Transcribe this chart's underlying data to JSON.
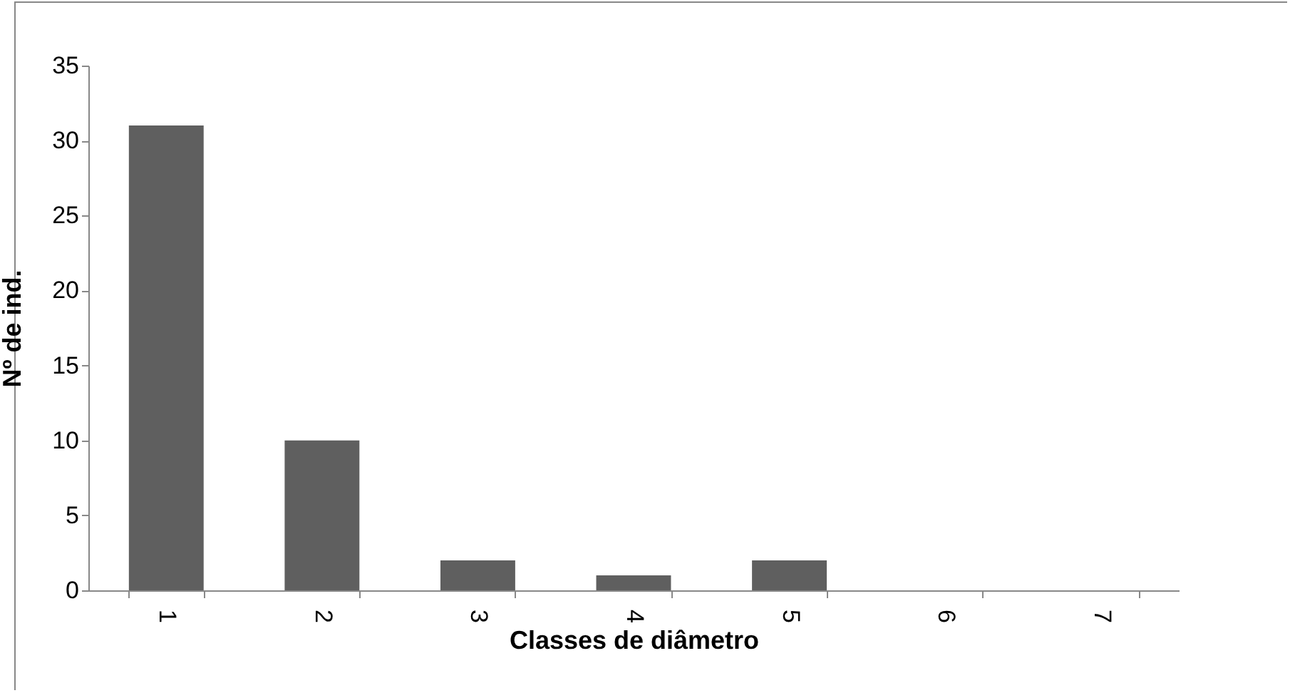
{
  "chart_data": {
    "type": "bar",
    "xlabel": "Classes de diâmetro",
    "ylabel": "Nº de ind.",
    "categories": [
      "1",
      "2",
      "3",
      "4",
      "5",
      "6",
      "7"
    ],
    "values": [
      31,
      10,
      2,
      1,
      2,
      0,
      0
    ],
    "color": "#5f5f5f",
    "ylim": [
      0,
      35
    ],
    "yticks": [
      0,
      5,
      10,
      15,
      20,
      25,
      30,
      35
    ],
    "grid": false
  }
}
